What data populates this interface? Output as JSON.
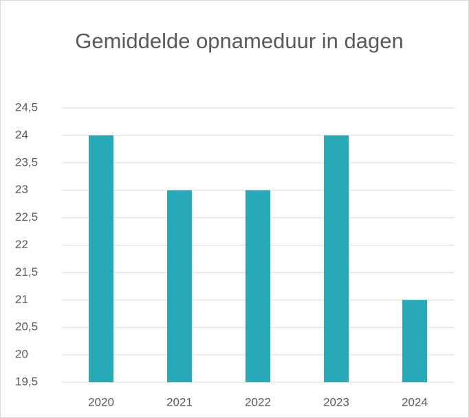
{
  "chart_data": {
    "type": "bar",
    "title": "Gemiddelde opnameduur in dagen",
    "categories": [
      "2020",
      "2021",
      "2022",
      "2023",
      "2024"
    ],
    "values": [
      24,
      23,
      23,
      24,
      21
    ],
    "color": "#28a9b8",
    "ylim": [
      19.5,
      24.5
    ],
    "yticks": [
      {
        "value": 19.5,
        "label": "19,5"
      },
      20,
      {
        "value": 20.5,
        "label": "20,5"
      },
      21,
      {
        "value": 21.5,
        "label": "21,5"
      },
      22,
      {
        "value": 22.5,
        "label": "22,5"
      },
      23,
      {
        "value": 23.5,
        "label": "23,5"
      },
      24,
      {
        "value": 24.5,
        "label": "24,5"
      }
    ],
    "grid": true
  }
}
